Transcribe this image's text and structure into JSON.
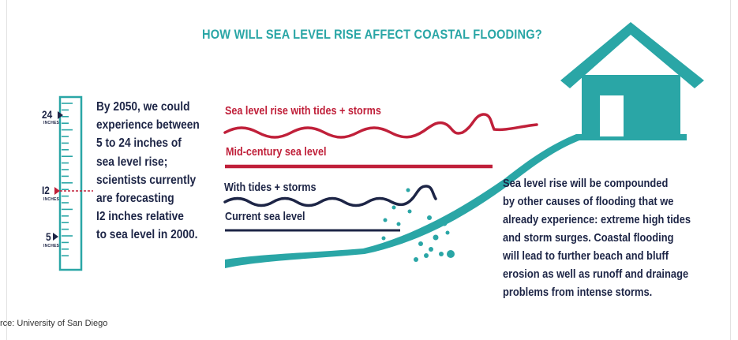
{
  "title": "HOW WILL SEA LEVEL RISE AFFECT COASTAL FLOODING?",
  "ruler": {
    "marks": [
      {
        "value": "24",
        "unit": "INCHES"
      },
      {
        "value": "I2",
        "unit": "INCHES"
      },
      {
        "value": "5",
        "unit": "INCHES"
      }
    ]
  },
  "left_text": {
    "lines": [
      "By 2050, we could",
      "experience between",
      "5 to 24 inches of",
      "sea level rise;",
      "scientists currently",
      "are forecasting",
      "I2 inches relative",
      "to sea level in 2000."
    ]
  },
  "scenarios": {
    "storm_rise": "Sea level rise with tides + storms",
    "mid_century": "Mid-century sea level",
    "tides_storms": "With tides + storms",
    "current": "Current sea level"
  },
  "right_text": {
    "lines": [
      "Sea level rise will be compounded",
      "by other causes of flooding that we",
      "already experience: extreme high tides",
      "and storm surges. Coastal flooding",
      "will lead to further beach and bluff",
      "erosion as well as runoff and drainage",
      "problems from intense storms."
    ]
  },
  "source": "rce: University of San Diego",
  "colors": {
    "teal": "#2aa6a6",
    "red": "#c0203a",
    "navy": "#1d2546"
  }
}
